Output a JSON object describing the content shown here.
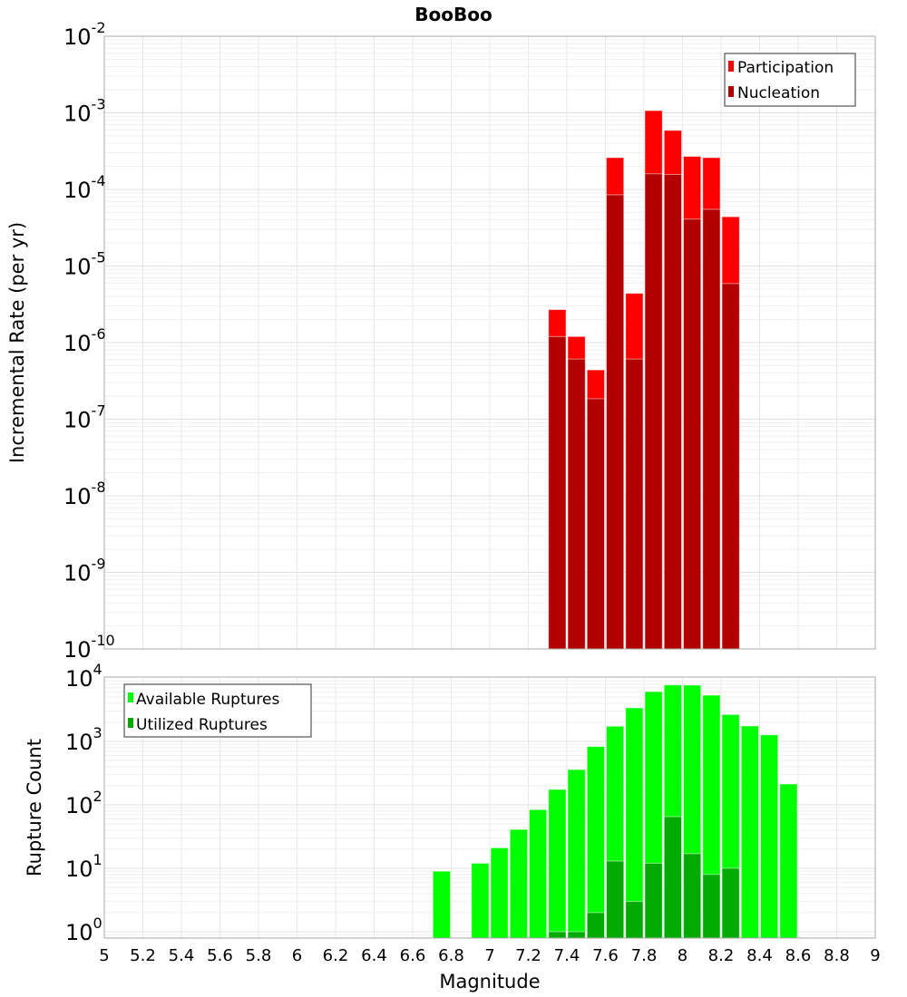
{
  "chart_data": [
    {
      "type": "bar",
      "title": "BooBoo",
      "xlabel": "Magnitude",
      "ylabel": "Incremental Rate (per yr)",
      "yscale": "log",
      "xlim": [
        5,
        9
      ],
      "ylim": [
        1e-10,
        0.01
      ],
      "ytick_exponents": [
        "-2",
        "-3",
        "-4",
        "-5",
        "-6",
        "-7",
        "-8",
        "-9",
        "-10"
      ],
      "grid": true,
      "legend_position": "top-right",
      "bin_width": 0.1,
      "x": [
        7.35,
        7.45,
        7.55,
        7.65,
        7.75,
        7.85,
        7.95,
        8.05,
        8.15,
        8.25
      ],
      "series": [
        {
          "name": "Participation",
          "color": "#ff0000",
          "values": [
            2.7e-06,
            1.2e-06,
            4.4e-07,
            0.00026,
            4.4e-06,
            0.00107,
            0.00059,
            0.00027,
            0.00026,
            4.4e-05
          ]
        },
        {
          "name": "Nucleation",
          "color": "#b20000",
          "values": [
            1.2e-06,
            6.1e-07,
            1.85e-07,
            8.5e-05,
            6.1e-07,
            0.00016,
            0.000157,
            4.1e-05,
            5.5e-05,
            5.9e-06
          ]
        }
      ]
    },
    {
      "type": "bar",
      "xlabel": "Magnitude",
      "ylabel": "Rupture Count",
      "yscale": "log",
      "xlim": [
        5,
        9
      ],
      "ylim": [
        0.8,
        10000
      ],
      "ytick_exponents": [
        "4",
        "3",
        "2",
        "1",
        "0"
      ],
      "xticks": [
        "5",
        "5.2",
        "5.4",
        "5.6",
        "5.8",
        "6",
        "6.2",
        "6.4",
        "6.6",
        "6.8",
        "7",
        "7.2",
        "7.4",
        "7.6",
        "7.8",
        "8",
        "8.2",
        "8.4",
        "8.6",
        "8.8",
        "9"
      ],
      "grid": true,
      "legend_position": "top-left",
      "bin_width": 0.1,
      "x": [
        6.75,
        6.95,
        7.05,
        7.15,
        7.25,
        7.35,
        7.45,
        7.55,
        7.65,
        7.75,
        7.85,
        7.95,
        8.05,
        8.15,
        8.25,
        8.35,
        8.45,
        8.55
      ],
      "series": [
        {
          "name": "Available Ruptures",
          "color": "#00ff00",
          "values": [
            9,
            12,
            21,
            41,
            84,
            175,
            360,
            830,
            1730,
            3380,
            6100,
            7760,
            7700,
            5350,
            2650,
            1750,
            1270,
            213
          ]
        },
        {
          "name": "Utilized Ruptures",
          "color": "#00aa00",
          "values": [
            0,
            0,
            0,
            0,
            0,
            1,
            1,
            2,
            13,
            3,
            12,
            65,
            17,
            8,
            10,
            0,
            0,
            0
          ]
        }
      ]
    }
  ]
}
